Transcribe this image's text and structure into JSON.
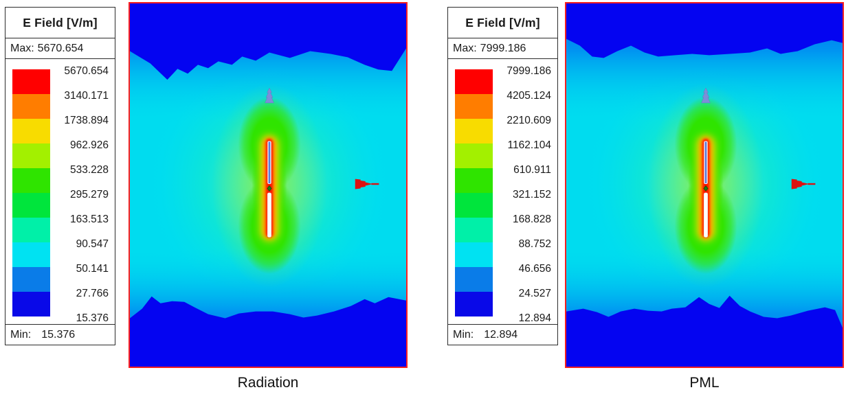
{
  "panels": [
    {
      "id": "radiation",
      "caption": "Radiation",
      "legend": {
        "title": "E Field [V/m]",
        "max_label": "Max:",
        "max_value": "5670.654",
        "min_label": "Min:",
        "min_value": "15.376",
        "scale_values": [
          "5670.654",
          "3140.171",
          "1738.894",
          "962.926",
          "533.228",
          "295.279",
          "163.513",
          "90.547",
          "50.141",
          "27.766",
          "15.376"
        ]
      }
    },
    {
      "id": "pml",
      "caption": "PML",
      "legend": {
        "title": "E Field [V/m]",
        "max_label": "Max:",
        "max_value": "7999.186",
        "min_label": "Min:",
        "min_value": "12.894",
        "scale_values": [
          "7999.186",
          "4205.124",
          "2210.609",
          "1162.104",
          "610.911",
          "321.152",
          "168.828",
          "88.752",
          "46.656",
          "24.527",
          "12.894"
        ]
      }
    }
  ],
  "colorbar_colors": [
    "#FF0000",
    "#FF7D00",
    "#F8DC00",
    "#A3F000",
    "#2FE400",
    "#00E53C",
    "#00F0A8",
    "#00E2F2",
    "#0A7CE8",
    "#0909E8"
  ],
  "plot_border_color": "#FF2020",
  "chart_data": [
    {
      "type": "heatmap",
      "title": "Radiation",
      "legend_title": "E Field [V/m]",
      "quantity": "E Field",
      "unit": "V/m",
      "max": 5670.654,
      "min": 15.376,
      "scale": [
        5670.654,
        3140.171,
        1738.894,
        962.926,
        533.228,
        295.279,
        163.513,
        90.547,
        50.141,
        27.766,
        15.376
      ],
      "scale_type": "log",
      "legend_position": "left",
      "description": "E-field magnitude around a vertical dipole antenna, radiation boundary; hot (red) core at dipole, green lobes, cyan midfield, dark blue low-field bands at top and bottom"
    },
    {
      "type": "heatmap",
      "title": "PML",
      "legend_title": "E Field [V/m]",
      "quantity": "E Field",
      "unit": "V/m",
      "max": 7999.186,
      "min": 12.894,
      "scale": [
        7999.186,
        4205.124,
        2210.609,
        1162.104,
        610.911,
        321.152,
        168.828,
        88.752,
        46.656,
        24.527,
        12.894
      ],
      "scale_type": "log",
      "legend_position": "left",
      "description": "E-field magnitude around a vertical dipole antenna, PML boundary; same color pattern as Radiation case"
    }
  ]
}
